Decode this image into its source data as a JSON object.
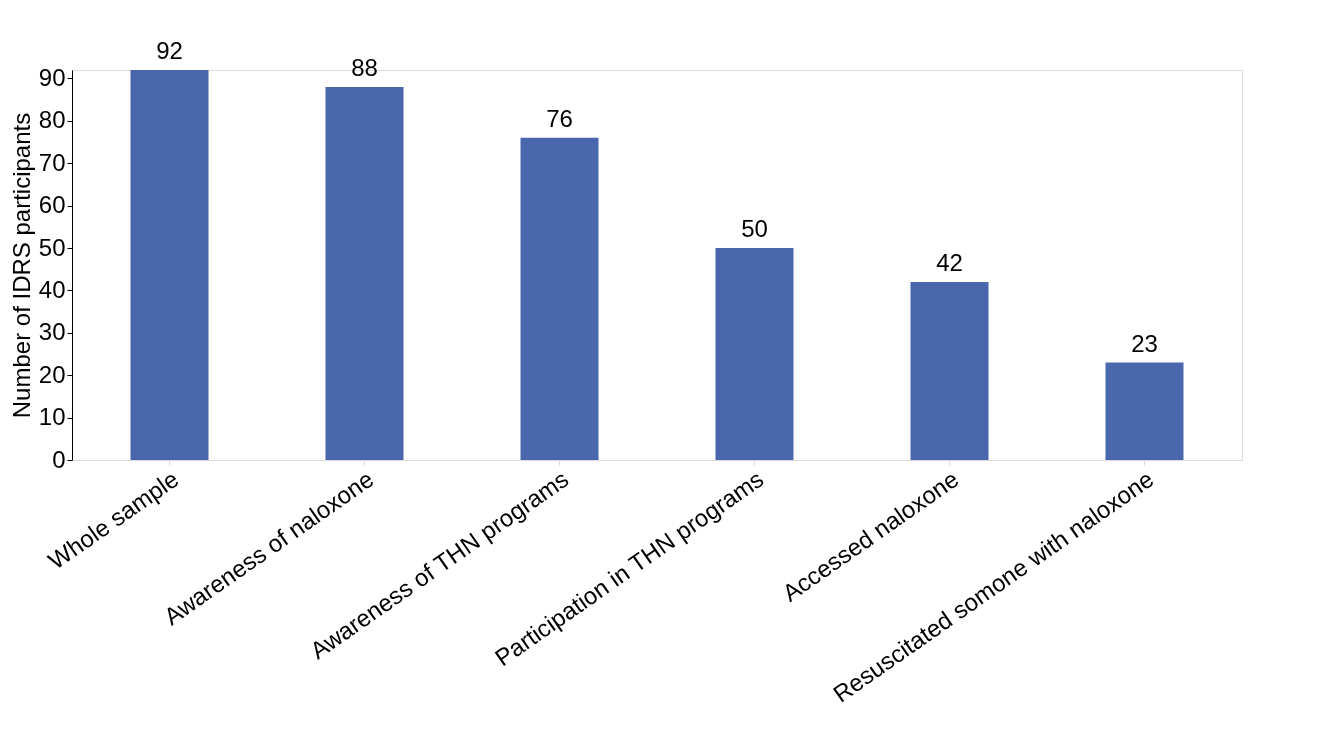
{
  "chart_data": {
    "type": "bar",
    "ylabel": "Number of IDRS participants",
    "categories": [
      "Whole sample",
      "Awareness of naloxone",
      "Awareness of THN programs",
      "Participation in THN programs",
      "Accessed naloxone",
      "Resuscitated somone with naloxone"
    ],
    "values": [
      92,
      88,
      76,
      50,
      42,
      23
    ],
    "color": "#4a66ac",
    "ylim": [
      0,
      92
    ],
    "yticks": [
      0,
      10,
      20,
      30,
      40,
      50,
      60,
      70,
      80,
      90
    ],
    "grid": false,
    "data_labels": true
  }
}
